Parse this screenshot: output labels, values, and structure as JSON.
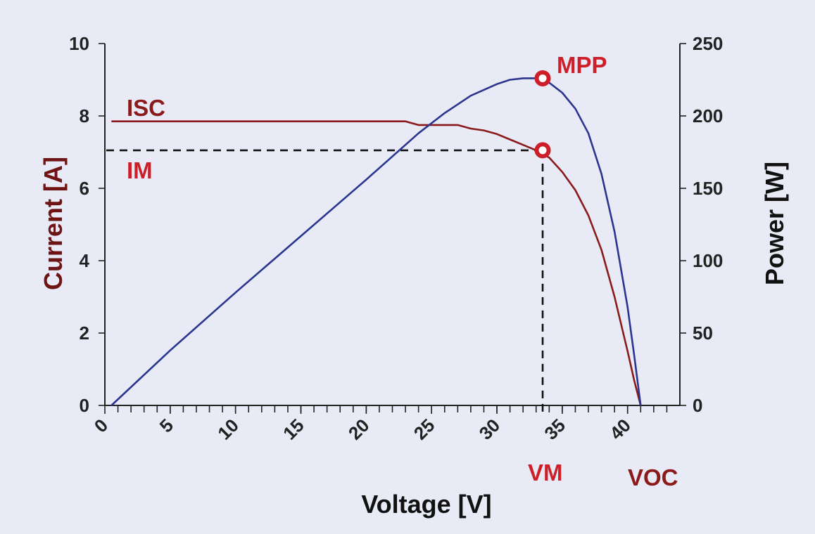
{
  "chart_data": {
    "type": "line",
    "title": "",
    "xlabel": "Voltage [V]",
    "ylabel": "Current [A]",
    "y2label": "Power [W]",
    "xlim": [
      0,
      44
    ],
    "ylim": [
      0,
      10
    ],
    "y2lim": [
      0,
      250
    ],
    "x_ticks": [
      0,
      5,
      10,
      15,
      20,
      25,
      30,
      35,
      40
    ],
    "x_minor_step": 1,
    "y_ticks": [
      0,
      2,
      4,
      6,
      8,
      10
    ],
    "y2_ticks": [
      0,
      50,
      100,
      150,
      200,
      250
    ],
    "grid": false,
    "colors": {
      "current": "#8b1a1a",
      "power": "#2b3590",
      "annotation": "#cc1f2a",
      "axis_title_left": "#6e1414",
      "axis_title_right": "#111111",
      "background": "#e8eaf5"
    },
    "series": [
      {
        "axis": "left",
        "color": "#8b1a1a",
        "x": [
          0.5,
          5,
          10,
          15,
          20,
          23,
          24,
          26,
          27,
          28,
          29,
          30,
          31,
          32,
          33,
          34,
          35,
          36,
          37,
          38,
          39,
          40,
          40.5,
          41
        ],
        "y": [
          7.85,
          7.85,
          7.85,
          7.85,
          7.85,
          7.85,
          7.75,
          7.75,
          7.75,
          7.65,
          7.6,
          7.5,
          7.35,
          7.2,
          7.05,
          6.85,
          6.45,
          5.95,
          5.25,
          4.3,
          3.0,
          1.5,
          0.7,
          0.0
        ]
      },
      {
        "axis": "right",
        "color": "#2b3590",
        "x": [
          0.5,
          5,
          10,
          15,
          20,
          24,
          26,
          28,
          30,
          31,
          32,
          33,
          34,
          35,
          36,
          37,
          38,
          39,
          40,
          40.5,
          41
        ],
        "y": [
          0,
          38,
          78,
          117,
          156,
          188,
          202,
          214,
          222,
          225,
          226,
          226,
          223,
          216,
          205,
          188,
          160,
          120,
          68,
          35,
          0
        ]
      }
    ],
    "points": [
      {
        "label": "MPP",
        "x": 33.5,
        "y": 226,
        "axis": "right"
      },
      {
        "label": "",
        "x": 33.5,
        "y": 7.05,
        "axis": "left"
      }
    ],
    "guides": {
      "vm": 33.5,
      "im": 7.05
    },
    "annotations": {
      "isc": "ISC",
      "im": "IM",
      "mpp": "MPP",
      "vm": "VM",
      "voc": "VOC"
    }
  }
}
